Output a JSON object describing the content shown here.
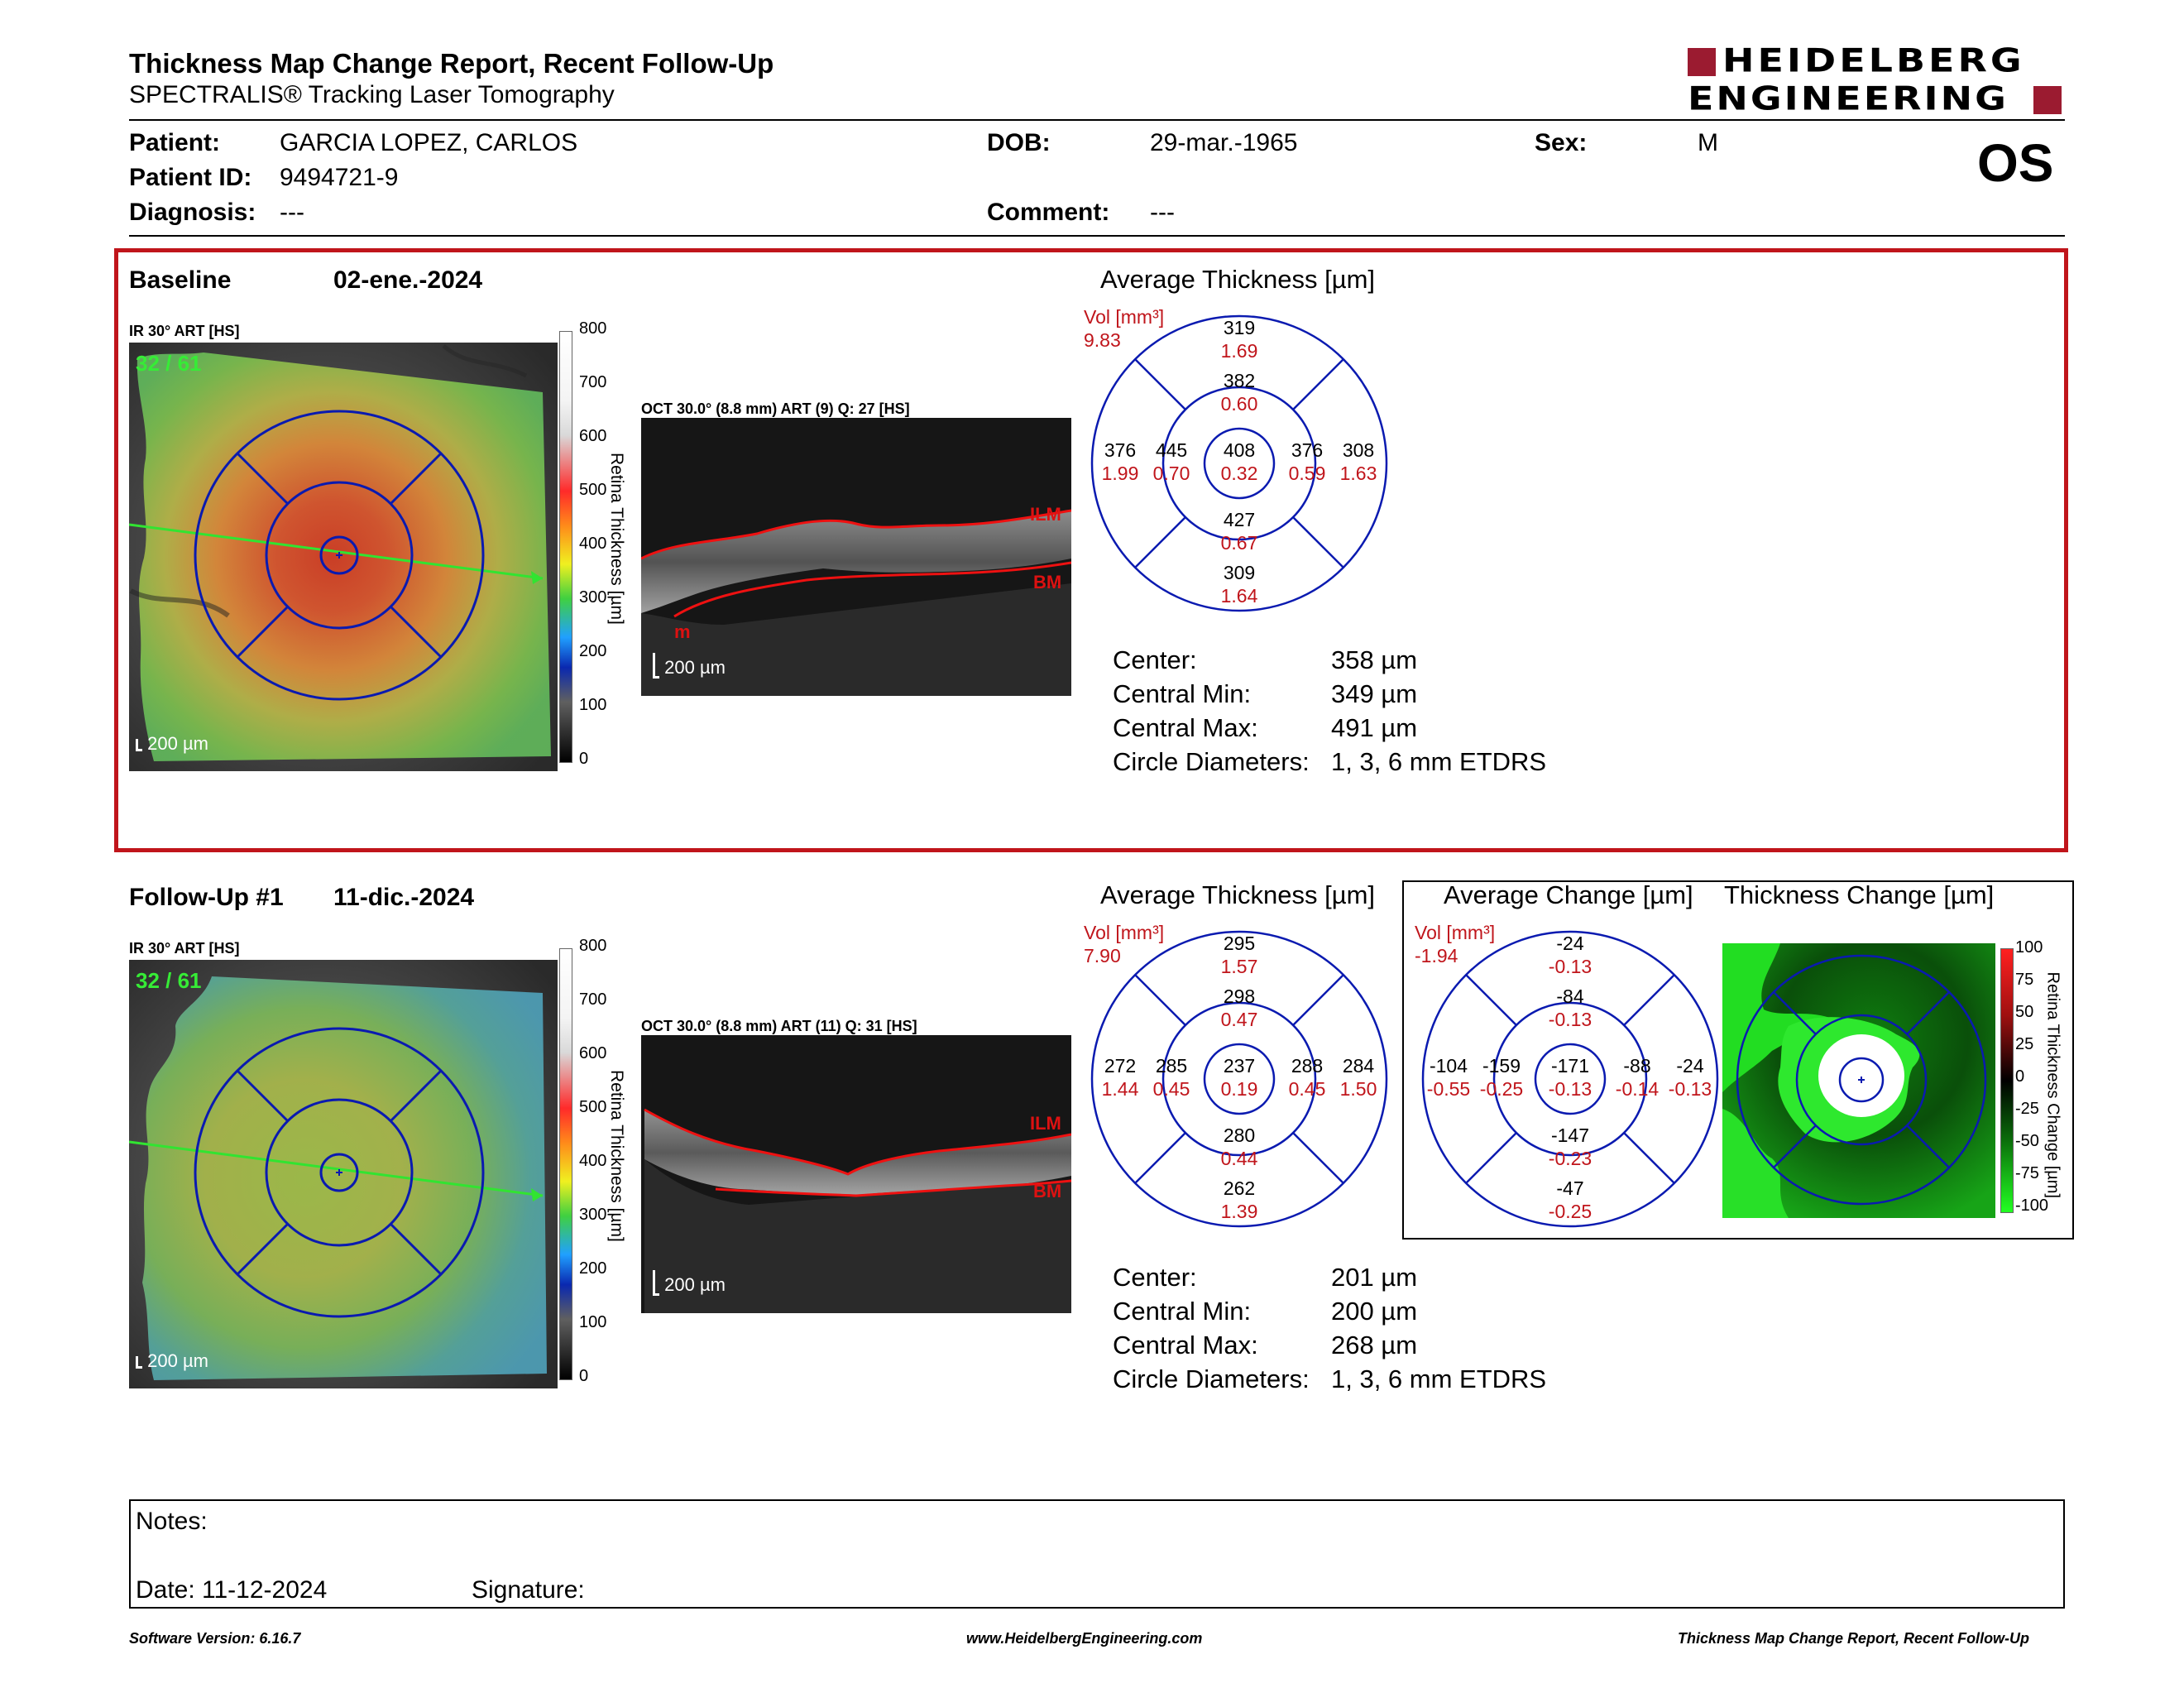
{
  "header": {
    "title": "Thickness Map Change Report, Recent Follow-Up",
    "subtitle": "SPECTRALIS® Tracking Laser Tomography",
    "brand_line1": "HEIDELBERG",
    "brand_line2": "ENGINEERING",
    "eye": "OS"
  },
  "patient": {
    "patient_label": "Patient:",
    "patient_value": "GARCIA LOPEZ, CARLOS",
    "id_label": "Patient ID:",
    "id_value": "9494721-9",
    "diagnosis_label": "Diagnosis:",
    "diagnosis_value": "---",
    "dob_label": "DOB:",
    "dob_value": "29-mar.-1965",
    "comment_label": "Comment:",
    "comment_value": "---",
    "sex_label": "Sex:",
    "sex_value": "M"
  },
  "baseline": {
    "label": "Baseline",
    "date": "02-ene.-2024",
    "ir_caption": "IR 30° ART [HS]",
    "ir_count": "32 / 61",
    "scale_bar": "200 µm",
    "colorbar_ticks": [
      "800",
      "700",
      "600",
      "500",
      "400",
      "300",
      "200",
      "100",
      "0"
    ],
    "colorbar_title": "Retina Thickness [µm]",
    "oct_caption": "OCT 30.0° (8.8 mm) ART (9) Q: 27 [HS]",
    "oct_labels": [
      "ILM",
      "BM",
      "m"
    ],
    "avg_title": "Average Thickness [µm]",
    "vol_label": "Vol [mm³]",
    "vol_total": "9.83",
    "etdrs": {
      "outer_sup": [
        "319",
        "1.69"
      ],
      "inner_sup": [
        "382",
        "0.60"
      ],
      "outer_temp": [
        "376",
        "1.99"
      ],
      "inner_temp": [
        "445",
        "0.70"
      ],
      "center": [
        "408",
        "0.32"
      ],
      "inner_nas": [
        "376",
        "0.59"
      ],
      "outer_nas": [
        "308",
        "1.63"
      ],
      "inner_inf": [
        "427",
        "0.67"
      ],
      "outer_inf": [
        "309",
        "1.64"
      ]
    },
    "stats": [
      [
        "Center:",
        "358 µm"
      ],
      [
        "Central Min:",
        "349 µm"
      ],
      [
        "Central Max:",
        "491 µm"
      ],
      [
        "Circle Diameters:",
        "1, 3, 6 mm ETDRS"
      ]
    ]
  },
  "followup": {
    "label": "Follow-Up #1",
    "date": "11-dic.-2024",
    "ir_caption": "IR 30° ART [HS]",
    "ir_count": "32 / 61",
    "scale_bar": "200 µm",
    "colorbar_ticks": [
      "800",
      "700",
      "600",
      "500",
      "400",
      "300",
      "200",
      "100",
      "0"
    ],
    "colorbar_title": "Retina Thickness [µm]",
    "oct_caption": "OCT 30.0° (8.8 mm) ART (11) Q: 31 [HS]",
    "oct_labels": [
      "ILM",
      "BM"
    ],
    "avg_title": "Average Thickness [µm]",
    "vol_label": "Vol [mm³]",
    "vol_total": "7.90",
    "etdrs": {
      "outer_sup": [
        "295",
        "1.57"
      ],
      "inner_sup": [
        "298",
        "0.47"
      ],
      "outer_temp": [
        "272",
        "1.44"
      ],
      "inner_temp": [
        "285",
        "0.45"
      ],
      "center": [
        "237",
        "0.19"
      ],
      "inner_nas": [
        "288",
        "0.45"
      ],
      "outer_nas": [
        "284",
        "1.50"
      ],
      "inner_inf": [
        "280",
        "0.44"
      ],
      "outer_inf": [
        "262",
        "1.39"
      ]
    },
    "change_title": "Average Change [µm]",
    "change_vol_label": "Vol [mm³]",
    "change_vol_total": "-1.94",
    "change_etdrs": {
      "outer_sup": [
        "-24",
        "-0.13"
      ],
      "inner_sup": [
        "-84",
        "-0.13"
      ],
      "outer_temp": [
        "-104",
        "-0.55"
      ],
      "inner_temp": [
        "-159",
        "-0.25"
      ],
      "center": [
        "-171",
        "-0.13"
      ],
      "inner_nas": [
        "-88",
        "-0.14"
      ],
      "outer_nas": [
        "-24",
        "-0.13"
      ],
      "inner_inf": [
        "-147",
        "-0.23"
      ],
      "outer_inf": [
        "-47",
        "-0.25"
      ]
    },
    "thickness_change_title": "Thickness Change [µm]",
    "change_ticks": [
      "100",
      "75",
      "50",
      "25",
      "0",
      "-25",
      "-50",
      "-75",
      "-100"
    ],
    "change_bar_title": "Retina Thickness Change [µm]",
    "stats": [
      [
        "Center:",
        "201 µm"
      ],
      [
        "Central Min:",
        "200 µm"
      ],
      [
        "Central Max:",
        "268 µm"
      ],
      [
        "Circle Diameters:",
        "1, 3, 6 mm ETDRS"
      ]
    ]
  },
  "notes": {
    "notes_label": "Notes:",
    "date_label": "Date: 11-12-2024",
    "signature_label": "Signature:"
  },
  "footer": {
    "version": "Software Version: 6.16.7",
    "url": "www.HeidelbergEngineering.com",
    "report": "Thickness Map Change Report, Recent Follow-Up"
  },
  "colors": {
    "accent_red": "#c0151b",
    "brand_red": "#9b1b30",
    "grid_blue": "#0a1ab0",
    "ilm_red": "#d11"
  }
}
